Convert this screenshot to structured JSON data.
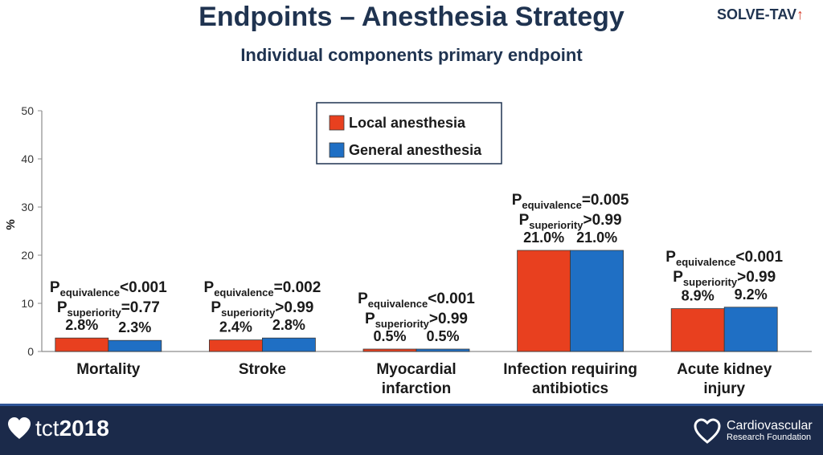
{
  "title": "Endpoints – Anesthesia Strategy",
  "subtitle": "Individual components primary endpoint",
  "logo": {
    "text": "SOLVE-TAV"
  },
  "footer": {
    "left_brand": "tct",
    "left_year": "2018",
    "right_name": "Cardiovascular",
    "right_sub": "Research Foundation"
  },
  "chart_data": {
    "type": "bar",
    "title": "Endpoints – Anesthesia Strategy",
    "subtitle": "Individual components primary endpoint",
    "ylabel": "%",
    "xlabel": "",
    "ylim": [
      0,
      50
    ],
    "yticks": [
      0,
      10,
      20,
      30,
      40,
      50
    ],
    "grid": false,
    "legend_position": "top-center",
    "categories": [
      [
        "Mortality"
      ],
      [
        "Stroke"
      ],
      [
        "Myocardial",
        "infarction"
      ],
      [
        "Infection requiring",
        "antibiotics"
      ],
      [
        "Acute kidney",
        "injury"
      ]
    ],
    "series": [
      {
        "name": "Local anesthesia",
        "color": "#e8401f",
        "values": [
          2.8,
          2.4,
          0.5,
          21.0,
          8.9
        ],
        "labels": [
          "2.8%",
          "2.4%",
          "0.5%",
          "21.0%",
          "8.9%"
        ]
      },
      {
        "name": "General anesthesia",
        "color": "#1f6fc4",
        "values": [
          2.3,
          2.8,
          0.5,
          21.0,
          9.2
        ],
        "labels": [
          "2.3%",
          "2.8%",
          "0.5%",
          "21.0%",
          "9.2%"
        ]
      }
    ],
    "annotations": [
      {
        "equivalence": "<0.001",
        "superiority": "=0.77"
      },
      {
        "equivalence": "=0.002",
        "superiority": ">0.99"
      },
      {
        "equivalence": "<0.001",
        "superiority": ">0.99"
      },
      {
        "equivalence": "=0.005",
        "superiority": ">0.99"
      },
      {
        "equivalence": "<0.001",
        "superiority": ">0.99"
      }
    ],
    "p_symbol": "P",
    "p_equivalence_sub": "equivalence",
    "p_superiority_sub": "superiority"
  }
}
